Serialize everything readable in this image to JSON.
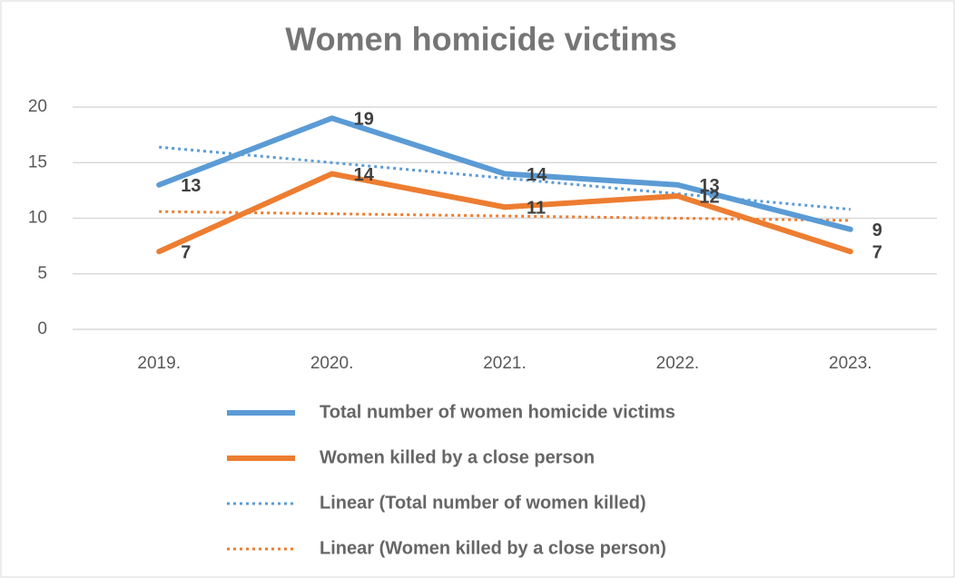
{
  "chart_data": {
    "type": "line",
    "title": "Women homicide victims",
    "categories": [
      "2019.",
      "2020.",
      "2021.",
      "2022.",
      "2023."
    ],
    "series": [
      {
        "name": "Total number of women homicide victims",
        "color": "#5b9bd5",
        "values": [
          13,
          19,
          14,
          13,
          9
        ],
        "data_labels": true
      },
      {
        "name": "Women killed by a close person",
        "color": "#ed7d31",
        "values": [
          7,
          14,
          11,
          12,
          7
        ],
        "data_labels": true
      },
      {
        "name": "Linear (Total number of women killed)",
        "color": "#5b9bd5",
        "values": [
          16.4,
          15,
          13.6,
          12.2,
          10.8
        ],
        "dotted": true
      },
      {
        "name": "Linear (Women killed by a close person)",
        "color": "#ed7d31",
        "values": [
          10.6,
          10.4,
          10.2,
          10,
          9.8
        ],
        "dotted": true
      }
    ],
    "ylim": [
      0,
      20
    ],
    "yticks": [
      0,
      5,
      10,
      15,
      20
    ],
    "grid": true,
    "legend": "bottom"
  }
}
